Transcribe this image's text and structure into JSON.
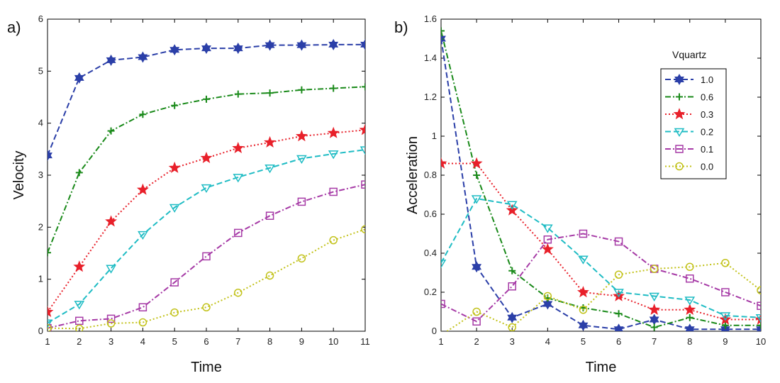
{
  "chart_data": [
    {
      "type": "line",
      "panel_label": "a)",
      "xlabel": "Time",
      "ylabel": "Velocity",
      "xlim": [
        1,
        11
      ],
      "ylim": [
        0,
        6
      ],
      "xticks": [
        "1",
        "2",
        "3",
        "4",
        "5",
        "6",
        "7",
        "8",
        "9",
        "10",
        "11"
      ],
      "yticks": [
        "0",
        "1",
        "2",
        "3",
        "4",
        "5",
        "6"
      ],
      "x": [
        1,
        2,
        3,
        4,
        5,
        6,
        7,
        8,
        9,
        10,
        11
      ],
      "series": [
        {
          "name": "1.0",
          "color": "#2b3fa8",
          "dash": "dashed",
          "marker": "hexagram",
          "values": [
            3.38,
            4.87,
            5.21,
            5.27,
            5.41,
            5.44,
            5.44,
            5.5,
            5.5,
            5.51,
            5.51
          ]
        },
        {
          "name": "0.6",
          "color": "#1a8a1a",
          "dash": "dashdot",
          "marker": "plus",
          "values": [
            1.51,
            3.05,
            3.85,
            4.17,
            4.34,
            4.46,
            4.56,
            4.58,
            4.64,
            4.67,
            4.7
          ]
        },
        {
          "name": "0.3",
          "color": "#e8202a",
          "dash": "dotted",
          "marker": "pentagram",
          "values": [
            0.37,
            1.24,
            2.11,
            2.72,
            3.14,
            3.33,
            3.52,
            3.63,
            3.75,
            3.81,
            3.87
          ]
        },
        {
          "name": "0.2",
          "color": "#1fbcc4",
          "dash": "dashed",
          "marker": "triangle",
          "values": [
            0.16,
            0.52,
            1.21,
            1.86,
            2.38,
            2.76,
            2.96,
            3.14,
            3.32,
            3.41,
            3.49
          ]
        },
        {
          "name": "0.1",
          "color": "#a63aa6",
          "dash": "dashdot",
          "marker": "square",
          "values": [
            0.06,
            0.2,
            0.24,
            0.46,
            0.94,
            1.44,
            1.89,
            2.22,
            2.49,
            2.68,
            2.82
          ]
        },
        {
          "name": "0.0",
          "color": "#c2c21a",
          "dash": "dotted",
          "marker": "circle",
          "values": [
            0.06,
            0.05,
            0.15,
            0.17,
            0.36,
            0.46,
            0.74,
            1.07,
            1.4,
            1.75,
            1.96
          ]
        }
      ]
    },
    {
      "type": "line",
      "panel_label": "b)",
      "xlabel": "Time",
      "ylabel": "Acceleration",
      "xlim": [
        1,
        10
      ],
      "ylim": [
        0,
        1.6
      ],
      "xticks": [
        "1",
        "2",
        "3",
        "4",
        "5",
        "6",
        "7",
        "8",
        "9",
        "10"
      ],
      "yticks": [
        "0",
        "0.2",
        "0.4",
        "0.6",
        "0.8",
        "1",
        "1.2",
        "1.4",
        "1.6"
      ],
      "x": [
        1,
        2,
        3,
        4,
        5,
        6,
        7,
        8,
        9,
        10
      ],
      "legend": {
        "title": "Vquartz",
        "placement": "top-right"
      },
      "series": [
        {
          "name": "1.0",
          "color": "#2b3fa8",
          "dash": "dashed",
          "marker": "hexagram",
          "values": [
            1.5,
            0.33,
            0.07,
            0.14,
            0.03,
            0.01,
            0.06,
            0.01,
            0.01,
            0.01
          ]
        },
        {
          "name": "0.6",
          "color": "#1a8a1a",
          "dash": "dashdot",
          "marker": "plus",
          "values": [
            1.54,
            0.8,
            0.31,
            0.17,
            0.12,
            0.09,
            0.02,
            0.07,
            0.03,
            0.03
          ]
        },
        {
          "name": "0.3",
          "color": "#e8202a",
          "dash": "dotted",
          "marker": "pentagram",
          "values": [
            0.86,
            0.86,
            0.62,
            0.42,
            0.2,
            0.18,
            0.11,
            0.11,
            0.06,
            0.06
          ]
        },
        {
          "name": "0.2",
          "color": "#1fbcc4",
          "dash": "dashed",
          "marker": "triangle",
          "values": [
            0.35,
            0.68,
            0.65,
            0.53,
            0.37,
            0.2,
            0.18,
            0.16,
            0.08,
            0.07
          ]
        },
        {
          "name": "0.1",
          "color": "#a63aa6",
          "dash": "dashdot",
          "marker": "square",
          "values": [
            0.14,
            0.05,
            0.23,
            0.47,
            0.5,
            0.46,
            0.32,
            0.27,
            0.2,
            0.13
          ]
        },
        {
          "name": "0.0",
          "color": "#c2c21a",
          "dash": "dotted",
          "marker": "circle",
          "values": [
            -0.02,
            0.1,
            0.02,
            0.18,
            0.11,
            0.29,
            0.32,
            0.33,
            0.35,
            0.21
          ]
        }
      ]
    }
  ]
}
